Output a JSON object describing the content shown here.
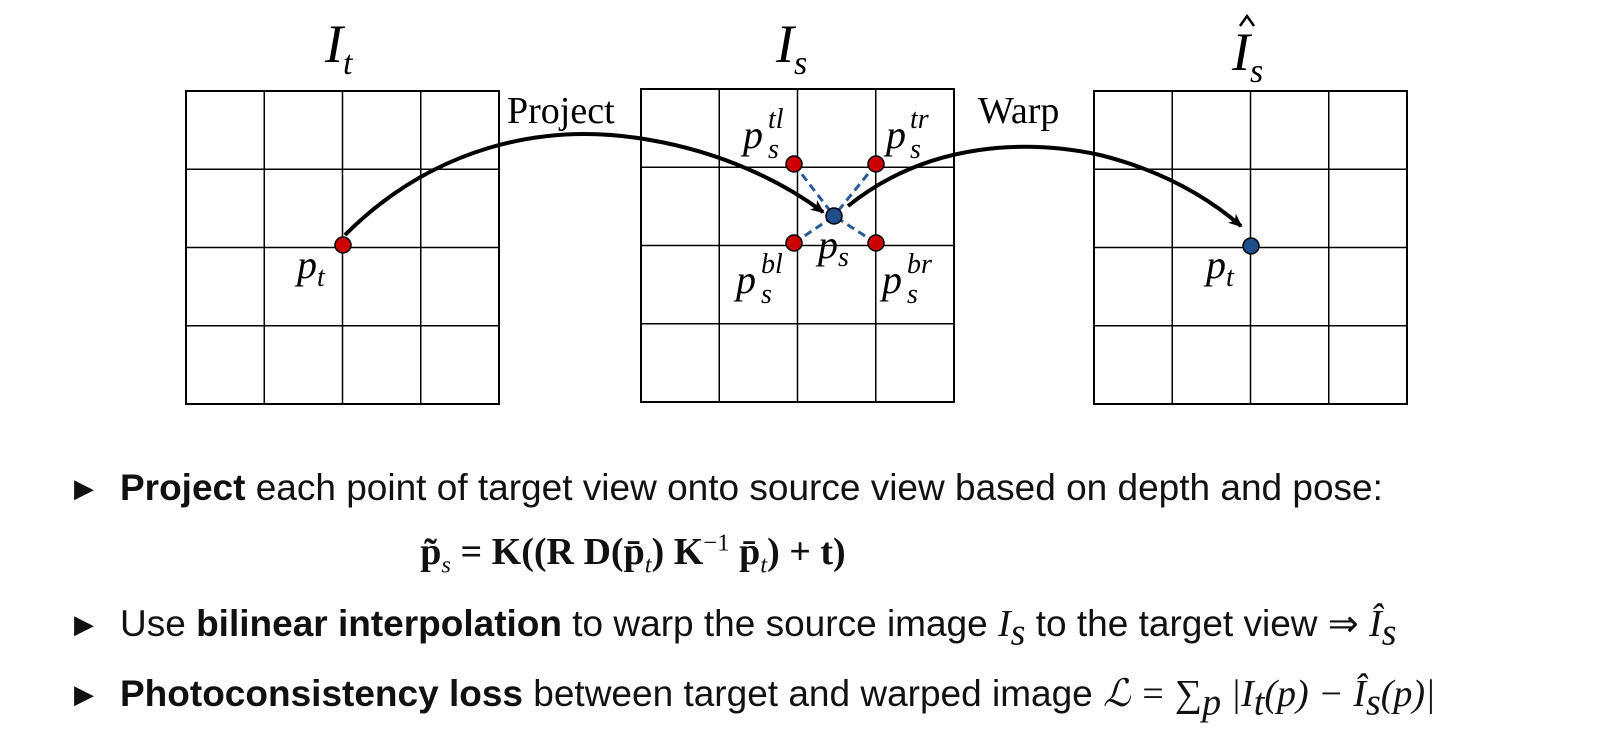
{
  "diagram": {
    "grids": [
      {
        "id": "target",
        "title": "I",
        "title_sub": "t",
        "title_hat": false
      },
      {
        "id": "source",
        "title": "I",
        "title_sub": "s",
        "title_hat": false
      },
      {
        "id": "warped",
        "title": "I",
        "title_sub": "s",
        "title_hat": true
      }
    ],
    "arrows": [
      {
        "label": "Project"
      },
      {
        "label": "Warp"
      }
    ],
    "point_labels": {
      "target_point": {
        "base": "p",
        "sub": "t"
      },
      "source_point": {
        "base": "p",
        "sub": "s"
      },
      "neighbor_tl": {
        "base": "p",
        "sub": "s",
        "sup": "tl"
      },
      "neighbor_tr": {
        "base": "p",
        "sub": "s",
        "sup": "tr"
      },
      "neighbor_bl": {
        "base": "p",
        "sub": "s",
        "sup": "bl"
      },
      "neighbor_br": {
        "base": "p",
        "sub": "s",
        "sup": "br"
      },
      "warped_point": {
        "base": "p",
        "sub": "t"
      }
    },
    "colors": {
      "red_point": "#cc0000",
      "blue_point": "#1f4e8c",
      "dashed": "#2b5a99",
      "grid": "#000000"
    }
  },
  "bullets": [
    {
      "bold": "Project",
      "text": " each point of target view onto source view based on depth and pose:"
    },
    {
      "pre": "Use ",
      "bold": "bilinear interpolation",
      "text": " to warp the source image ",
      "math1": "I",
      "math1_sub": "s",
      "text2": " to the target view ⇒ ",
      "math2": "Î",
      "math2_sub": "s"
    },
    {
      "bold": "Photoconsistency loss",
      "text": " between target and warped image ",
      "formula": "ℒ = ∑",
      "formula_sub": "p",
      "formula_rest": " |I",
      "formula_rest_sub": "t",
      "formula_mid": "(p) − Î",
      "formula_mid_sub": "s",
      "formula_end": "(p)|"
    }
  ],
  "equation": {
    "lhs": "p̃",
    "lhs_sub": "s",
    "rhs": "= K((R D(p̄",
    "rhs_sub1": "t",
    "rhs2": ") K",
    "rhs_sup": "−1",
    "rhs3": " p̄",
    "rhs_sub2": "t",
    "rhs4": ") + t)"
  }
}
